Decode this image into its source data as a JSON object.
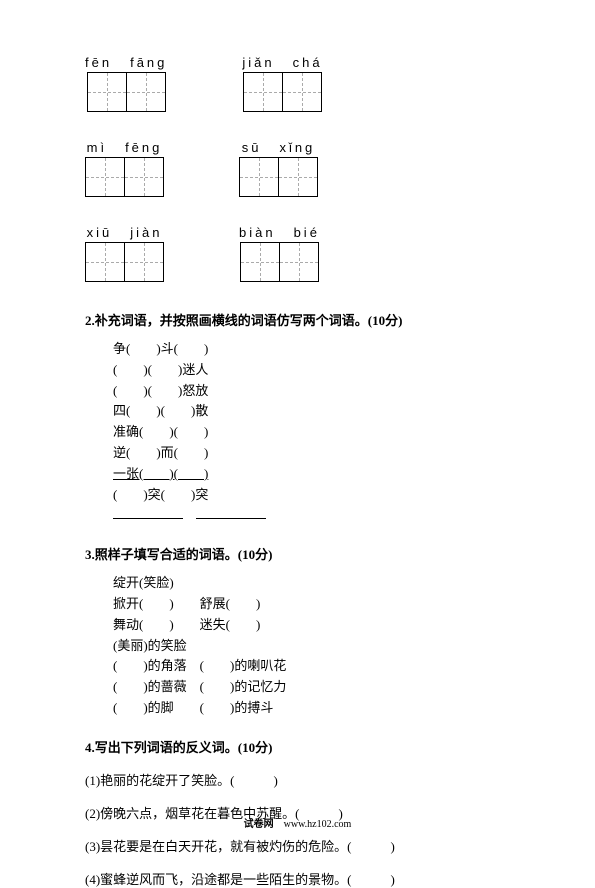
{
  "pinyin_rows": [
    [
      {
        "syll1": "fēn",
        "syll2": "fāng"
      },
      {
        "syll1": "jiǎn",
        "syll2": "chá"
      }
    ],
    [
      {
        "syll1": "mì",
        "syll2": "fēng"
      },
      {
        "syll1": "sū",
        "syll2": "xǐng"
      }
    ],
    [
      {
        "syll1": "xiū",
        "syll2": "jiàn"
      },
      {
        "syll1": "biàn",
        "syll2": "bié"
      }
    ]
  ],
  "q2": {
    "title": "2.补充词语，并按照画横线的词语仿写两个词语。(10分)",
    "lines": [
      "争(　　)斗(　　)",
      "(　　)(　　)迷人",
      "(　　)(　　)怒放",
      "四(　　)(　　)散",
      "准确(　　)(　　)",
      "逆(　　)而(　　)",
      "一张(　　)(　　)",
      "(　　)突(　　)突"
    ]
  },
  "q3": {
    "title": "3.照样子填写合适的词语。(10分)",
    "lines1": [
      "绽开(笑脸)",
      "掀开(　　)　　舒展(　　)",
      "舞动(　　)　　迷失(　　)"
    ],
    "lines2": [
      "(美丽)的笑脸",
      "(　　)的角落　(　　)的喇叭花",
      "(　　)的蔷薇　(　　)的记忆力",
      "(　　)的脚　　(　　)的搏斗"
    ]
  },
  "q4": {
    "title": "4.写出下列词语的反义词。(10分)",
    "items": [
      "(1)艳丽的花绽开了笑脸。(　　　)",
      "(2)傍晚六点，烟草花在暮色中苏醒。(　　　)",
      "(3)昙花要是在白天开花，就有被灼伤的危险。(　　　)",
      "(4)蜜蜂逆风而飞，沿途都是一些陌生的景物。(　　　)"
    ]
  },
  "footer": {
    "site": "试卷网",
    "url": "www.hz102.com"
  }
}
